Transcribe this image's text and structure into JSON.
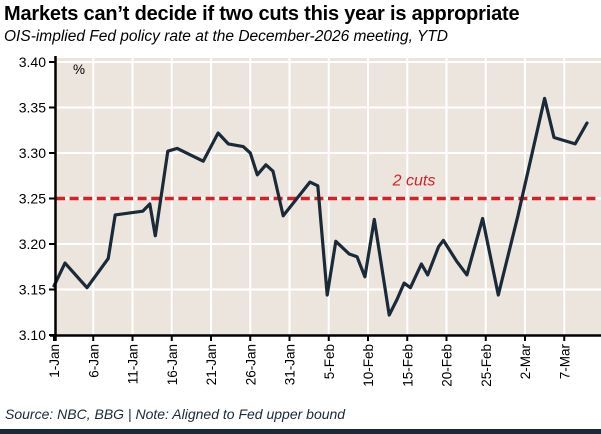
{
  "header": {
    "title": "Markets can’t decide if two cuts this year is appropriate",
    "subtitle": "OIS-implied Fed policy rate at the December-2026 meeting, YTD"
  },
  "footer": {
    "source": "Source: NBC, BBG | Note: Aligned to Fed upper bound"
  },
  "chart_data": {
    "type": "line",
    "title": "Markets can’t decide if two cuts this year is appropriate",
    "subtitle": "OIS-implied Fed policy rate at the December-2026 meeting, YTD",
    "grid": true,
    "legend": "none",
    "y_axis": {
      "unit": "%",
      "min": 3.1,
      "max": 3.4,
      "step": 0.05,
      "ticks": [
        3.4,
        3.35,
        3.3,
        3.25,
        3.2,
        3.15,
        3.1
      ]
    },
    "x_axis": {
      "ticks": [
        {
          "label": "1-Jan",
          "day": 0
        },
        {
          "label": "6-Jan",
          "day": 5
        },
        {
          "label": "11-Jan",
          "day": 10
        },
        {
          "label": "16-Jan",
          "day": 15
        },
        {
          "label": "21-Jan",
          "day": 20
        },
        {
          "label": "26-Jan",
          "day": 25
        },
        {
          "label": "31-Jan",
          "day": 30
        },
        {
          "label": "5-Feb",
          "day": 35
        },
        {
          "label": "10-Feb",
          "day": 40
        },
        {
          "label": "15-Feb",
          "day": 45
        },
        {
          "label": "20-Feb",
          "day": 50
        },
        {
          "label": "25-Feb",
          "day": 55
        },
        {
          "label": "2-Mar",
          "day": 60
        },
        {
          "label": "7-Mar",
          "day": 65
        }
      ]
    },
    "reference_line": {
      "value": 3.25,
      "label": "2 cuts",
      "style": "dashed",
      "color": "#d42029"
    },
    "series": [
      {
        "name": "OIS-implied Fed policy rate, December-2026 meeting",
        "color": "#1b2a38",
        "points": [
          [
            0,
            3.154
          ],
          [
            1.4,
            3.179
          ],
          [
            4.2,
            3.152
          ],
          [
            6.9,
            3.184
          ],
          [
            7.8,
            3.232
          ],
          [
            11.3,
            3.236
          ],
          [
            12.2,
            3.244
          ],
          [
            12.9,
            3.209
          ],
          [
            14.5,
            3.302
          ],
          [
            15.7,
            3.305
          ],
          [
            19.0,
            3.291
          ],
          [
            20.9,
            3.322
          ],
          [
            22.2,
            3.31
          ],
          [
            24.1,
            3.307
          ],
          [
            25.0,
            3.3
          ],
          [
            25.9,
            3.276
          ],
          [
            27.0,
            3.287
          ],
          [
            27.9,
            3.28
          ],
          [
            29.2,
            3.231
          ],
          [
            32.6,
            3.268
          ],
          [
            33.6,
            3.264
          ],
          [
            34.8,
            3.144
          ],
          [
            35.9,
            3.203
          ],
          [
            37.6,
            3.189
          ],
          [
            38.6,
            3.186
          ],
          [
            39.6,
            3.164
          ],
          [
            40.8,
            3.227
          ],
          [
            42.7,
            3.122
          ],
          [
            43.7,
            3.139
          ],
          [
            44.6,
            3.157
          ],
          [
            45.4,
            3.152
          ],
          [
            46.8,
            3.178
          ],
          [
            47.6,
            3.166
          ],
          [
            49.0,
            3.197
          ],
          [
            49.6,
            3.204
          ],
          [
            51.3,
            3.181
          ],
          [
            52.6,
            3.166
          ],
          [
            54.6,
            3.228
          ],
          [
            56.6,
            3.144
          ],
          [
            59.1,
            3.231
          ],
          [
            62.5,
            3.36
          ],
          [
            63.7,
            3.317
          ],
          [
            66.4,
            3.31
          ],
          [
            67.9,
            3.333
          ]
        ]
      }
    ],
    "colors": {
      "plot_bg": "#ece5de",
      "grid": "#ffffff",
      "axis": "#000000",
      "line": "#1b2a38",
      "reference": "#d42029",
      "footer_bar": "#1b2a38",
      "source_text": "#1b2a38"
    }
  }
}
